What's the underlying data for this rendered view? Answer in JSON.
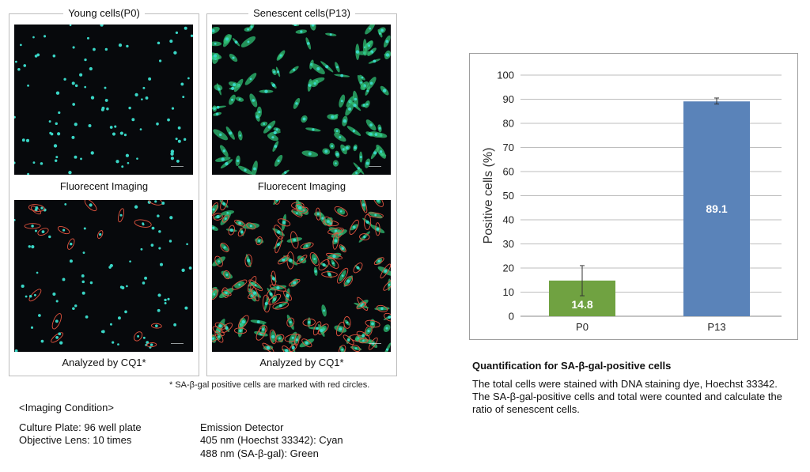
{
  "left": {
    "young": {
      "title": "Young cells(P0)",
      "fluorescent_caption": "Fluorecent Imaging",
      "analyzed_caption": "Analyzed by CQ1*"
    },
    "senescent": {
      "title": "Senescent cells(P13)",
      "fluorescent_caption": "Fluorecent Imaging",
      "analyzed_caption": "Analyzed by CQ1*"
    },
    "footnote": "* SA-β-gal positive cells are marked with red circles."
  },
  "imaging": {
    "heading": "<Imaging Condition>",
    "culture_plate": "Culture Plate: 96 well plate",
    "objective_lens": "Objective Lens: 10 times",
    "emission_heading": "Emission Detector",
    "emission_405": "405 nm (Hoechst 33342): Cyan",
    "emission_488": "488 nm (SA-β-gal): Green"
  },
  "quant": {
    "title": "Quantification for SA-β-gal-positive cells",
    "description": "The total cells were stained with DNA staining dye, Hoechst 33342. The SA-β-gal-positive cells and total were counted and calculate the ratio of senescent cells."
  },
  "colors": {
    "p0_bar": "#70a241",
    "p13_bar": "#5a83b9",
    "cyan_nucleus": "#39d6c6",
    "green_cell": "#2fbf73",
    "red_circle": "#e0533e"
  },
  "chart_data": {
    "type": "bar",
    "categories": [
      "P0",
      "P13"
    ],
    "values": [
      14.8,
      89.1
    ],
    "error_bars": [
      {
        "low": 8.5,
        "high": 21.0
      },
      {
        "low": 88.0,
        "high": 90.5
      }
    ],
    "value_labels": [
      "14.8",
      "89.1"
    ],
    "ylabel": "Positive cells (%)",
    "ylim": [
      0,
      100
    ],
    "yticks": [
      0,
      10,
      20,
      30,
      40,
      50,
      60,
      70,
      80,
      90,
      100
    ],
    "grid": true,
    "bar_colors": [
      "#70a241",
      "#5a83b9"
    ]
  }
}
